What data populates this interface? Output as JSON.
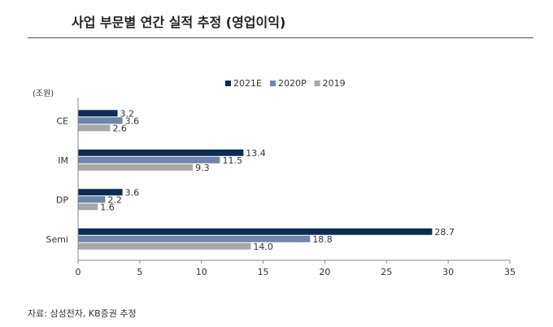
{
  "header": {
    "title": "사업 부문별 연간 실적 추정 (영업이익)"
  },
  "footer": {
    "source": "자료: 삼성전자, KB증권 추정"
  },
  "chart_data": {
    "type": "bar",
    "orientation": "horizontal",
    "title": "사업 부문별 연간 실적 추정 (영업이익)",
    "unit_label": "(조원)",
    "categories": [
      "CE",
      "IM",
      "DP",
      "Semi"
    ],
    "series": [
      {
        "name": "2021E",
        "color": "#0d2b55",
        "values": [
          3.2,
          13.4,
          3.6,
          28.7
        ],
        "labels": [
          "3.2",
          "13.4",
          "3.6",
          "28.7"
        ]
      },
      {
        "name": "2020P",
        "color": "#6f86aa",
        "values": [
          3.6,
          11.5,
          2.2,
          18.8
        ],
        "labels": [
          "3.6",
          "11.5",
          "2.2",
          "18.8"
        ]
      },
      {
        "name": "2019",
        "color": "#a7a7a7",
        "values": [
          2.6,
          9.3,
          1.6,
          14.0
        ],
        "labels": [
          "2.6",
          "9.3",
          "1.6",
          "14.0"
        ]
      }
    ],
    "xlim": [
      0,
      35
    ],
    "xticks": [
      "0",
      "5",
      "10",
      "15",
      "20",
      "25",
      "30",
      "35"
    ],
    "legend_position": "top",
    "grid": false
  }
}
